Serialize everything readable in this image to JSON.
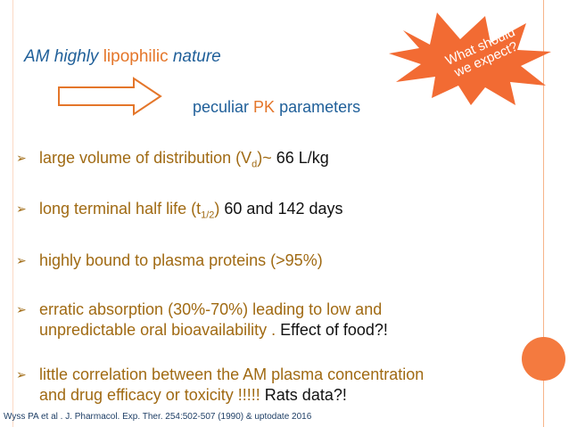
{
  "title": {
    "part1": "AM highly ",
    "part2": "lipophilic",
    "part3": " nature"
  },
  "subtitle": {
    "part1": "peculiar ",
    "part2": "PK",
    "part3": " parameters"
  },
  "callout": {
    "line1": "What should",
    "line2": "we expect?"
  },
  "bullets": [
    {
      "pre": "large volume of distribution (V",
      "sub": "d",
      "post": ")~ ",
      "dark": "66 L/kg"
    },
    {
      "pre": "long terminal half life (t",
      "sub": "1/2",
      "post": ") ",
      "dark": "60 and 142 days"
    },
    {
      "pre": "highly bound to plasma proteins (>95%)"
    },
    {
      "line1": "erratic absorption (30%-70%) leading to low and",
      "line2": "unpredictable oral bioavailability . ",
      "dark": "Effect of food?!"
    },
    {
      "line1": "little correlation between the AM plasma concentration",
      "line2": "and drug efficacy or toxicity !!!!! ",
      "dark": "Rats data?!"
    }
  ],
  "reference": "Wyss PA et al . J. Pharmacol. Exp. Ther. 254:502-507 (1990) & uptodate 2016",
  "colors": {
    "blue": "#1f5f99",
    "orange": "#e4762a",
    "gold": "#a06a13",
    "burst": "#f26b33"
  }
}
